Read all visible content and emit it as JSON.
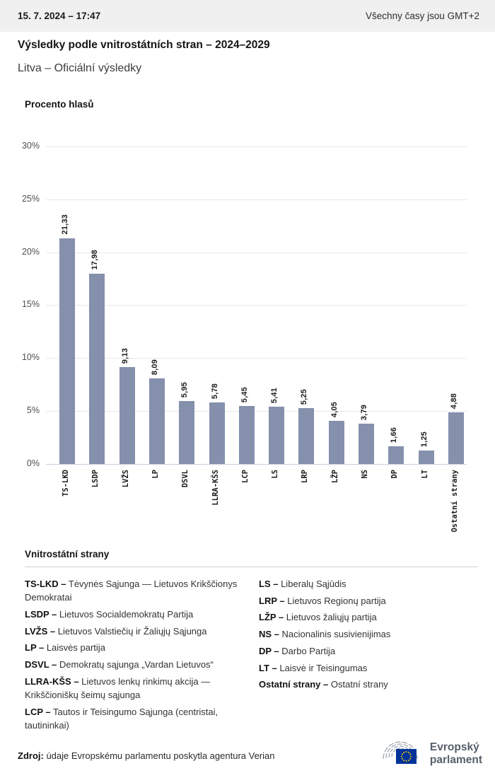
{
  "header": {
    "datetime": "15. 7. 2024 – 17:47",
    "timezone_note": "Všechny časy jsou GMT+2"
  },
  "title": "Výsledky podle vnitrostátních stran – 2024–2029",
  "subtitle": "Litva – Oficiální výsledky",
  "chart_data": {
    "type": "bar",
    "title": "Procento hlasů",
    "ylabel": "Procento hlasů",
    "ylim": [
      0,
      30
    ],
    "ytick_labels": [
      "30%",
      "25%",
      "20%",
      "15%",
      "10%",
      "5%",
      "0%"
    ],
    "grid": true,
    "legend_position": "none",
    "bar_color": "#8590AC",
    "categories": [
      "TS-LKD",
      "LSDP",
      "LVŽS",
      "LP",
      "DSVL",
      "LLRA-KŠS",
      "LCP",
      "LS",
      "LRP",
      "LŽP",
      "NS",
      "DP",
      "LT",
      "Ostatní strany"
    ],
    "values": [
      21.33,
      17.98,
      9.13,
      8.09,
      5.95,
      5.78,
      5.45,
      5.41,
      5.25,
      4.05,
      3.79,
      1.66,
      1.25,
      4.88
    ],
    "value_labels": [
      "21,33",
      "17,98",
      "9,13",
      "8,09",
      "5,95",
      "5,78",
      "5,45",
      "5,41",
      "5,25",
      "4,05",
      "3,79",
      "1,66",
      "1,25",
      "4,88"
    ]
  },
  "legend": {
    "title": "Vnitrostátní strany",
    "left_column": [
      {
        "abbr": "TS-LKD –",
        "name": "Tėvynės Sąjunga — Lietuvos Krikščionys Demokratai"
      },
      {
        "abbr": "LSDP –",
        "name": "Lietuvos Socialdemokratų Partija"
      },
      {
        "abbr": "LVŽS –",
        "name": "Lietuvos Valstiečių ir Žaliųjų Sąjunga"
      },
      {
        "abbr": "LP –",
        "name": "Laisvės partija"
      },
      {
        "abbr": "DSVL –",
        "name": "Demokratų sąjunga „Vardan Lietuvos“"
      },
      {
        "abbr": "LLRA-KŠS –",
        "name": "Lietuvos lenkų rinkimų akcija — Krikščioniškų šeimų sąjunga"
      },
      {
        "abbr": "LCP –",
        "name": "Tautos ir Teisingumo Sąjunga (centristai, tautininkai)"
      }
    ],
    "right_column": [
      {
        "abbr": "LS –",
        "name": "Liberalų Sąjūdis"
      },
      {
        "abbr": "LRP –",
        "name": "Lietuvos Regionų partija"
      },
      {
        "abbr": "LŽP –",
        "name": "Lietuvos žaliųjų partija"
      },
      {
        "abbr": "NS –",
        "name": "Nacionalinis susivienijimas"
      },
      {
        "abbr": "DP –",
        "name": "Darbo Partija"
      },
      {
        "abbr": "LT –",
        "name": "Laisvė ir Teisingumas"
      },
      {
        "abbr": "Ostatní strany –",
        "name": "Ostatní strany"
      }
    ]
  },
  "footer": {
    "source_label": "Zdroj:",
    "source_text": "údaje Evropskému parlamentu poskytla agentura Verian",
    "logo_line1": "Evropský",
    "logo_line2": "parlament"
  }
}
